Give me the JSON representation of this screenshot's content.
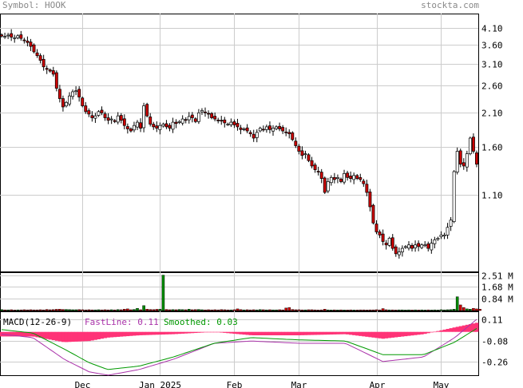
{
  "header": {
    "symbol_label": "Symbol: HOOK",
    "brand": "stockta.com"
  },
  "chart_data": [
    {
      "type": "candlestick",
      "title": "",
      "y_scale": "log",
      "ylim": [
        0.6,
        4.6
      ],
      "y_ticks": [
        "4.10",
        "3.60",
        "3.10",
        "2.60",
        "2.10",
        "1.60",
        "1.10"
      ],
      "x_ticks": [
        "Dec",
        "Jan 2025",
        "Feb",
        "Mar",
        "Apr",
        "May"
      ],
      "grid": true,
      "colors": {
        "up": "#ffffff",
        "down": "#cc0000",
        "wick": "#000000"
      },
      "close": [
        3.85,
        3.84,
        3.88,
        3.82,
        3.8,
        3.86,
        3.78,
        3.72,
        3.66,
        3.55,
        3.4,
        3.3,
        3.18,
        3.02,
        2.96,
        2.92,
        2.85,
        2.55,
        2.35,
        2.2,
        2.28,
        2.4,
        2.48,
        2.5,
        2.38,
        2.22,
        2.12,
        2.08,
        2.02,
        2.05,
        2.12,
        2.1,
        2.02,
        1.98,
        2.0,
        1.96,
        2.05,
        1.98,
        1.9,
        1.85,
        1.82,
        1.9,
        1.95,
        1.86,
        2.22,
        2.05,
        1.92,
        1.88,
        1.86,
        1.9,
        1.92,
        1.88,
        1.86,
        1.95,
        1.93,
        1.96,
        2.0,
        1.98,
        2.04,
        2.02,
        1.96,
        2.1,
        2.14,
        2.1,
        2.08,
        2.02,
        2.0,
        1.98,
        1.97,
        1.94,
        1.92,
        1.95,
        1.91,
        1.88,
        1.84,
        1.85,
        1.82,
        1.78,
        1.72,
        1.8,
        1.86,
        1.84,
        1.88,
        1.84,
        1.86,
        1.88,
        1.85,
        1.82,
        1.8,
        1.78,
        1.7,
        1.62,
        1.55,
        1.5,
        1.52,
        1.44,
        1.38,
        1.34,
        1.32,
        1.25,
        1.12,
        1.22,
        1.26,
        1.24,
        1.26,
        1.22,
        1.3,
        1.26,
        1.25,
        1.28,
        1.25,
        1.24,
        1.2,
        1.12,
        1.0,
        0.88,
        0.82,
        0.8,
        0.76,
        0.74,
        0.78,
        0.72,
        0.69,
        0.7,
        0.72,
        0.73,
        0.74,
        0.72,
        0.74,
        0.73,
        0.74,
        0.74,
        0.72,
        0.75,
        0.77,
        0.78,
        0.8,
        0.8,
        0.85,
        0.9,
        1.32,
        1.55,
        1.4,
        1.38,
        1.52,
        1.72,
        1.55,
        1.4
      ],
      "panels": [
        {
          "type": "bar",
          "name": "volume",
          "y_ticks": [
            "2.51 M",
            "1.68 M",
            "0.84 M"
          ],
          "ylim": [
            0,
            2.6
          ],
          "colors": {
            "up": "#008800",
            "down": "#cc0000"
          },
          "values": [
            0.07,
            0.05,
            0.05,
            0.06,
            0.04,
            0.05,
            0.05,
            0.06,
            0.05,
            0.06,
            0.05,
            0.05,
            0.06,
            0.05,
            0.08,
            0.06,
            0.07,
            0.09,
            0.1,
            0.08,
            0.08,
            0.07,
            0.06,
            0.06,
            0.07,
            0.06,
            0.05,
            0.06,
            0.05,
            0.05,
            0.06,
            0.05,
            0.06,
            0.05,
            0.06,
            0.05,
            0.07,
            0.06,
            0.1,
            0.12,
            0.06,
            0.08,
            0.16,
            0.06,
            0.35,
            0.1,
            0.08,
            0.07,
            0.09,
            0.1,
            2.51,
            0.08,
            0.06,
            0.07,
            0.06,
            0.08,
            0.07,
            0.06,
            0.1,
            0.06,
            0.07,
            0.08,
            0.06,
            0.05,
            0.06,
            0.05,
            0.06,
            0.05,
            0.07,
            0.06,
            0.05,
            0.05,
            0.06,
            0.12,
            0.07,
            0.05,
            0.06,
            0.05,
            0.06,
            0.05,
            0.07,
            0.06,
            0.05,
            0.06,
            0.05,
            0.05,
            0.06,
            0.05,
            0.18,
            0.22,
            0.08,
            0.06,
            0.06,
            0.05,
            0.05,
            0.06,
            0.06,
            0.05,
            0.04,
            0.05,
            0.1,
            0.05,
            0.04,
            0.05,
            0.04,
            0.05,
            0.04,
            0.04,
            0.05,
            0.04,
            0.04,
            0.05,
            0.05,
            0.04,
            0.05,
            0.05,
            0.06,
            0.05,
            0.14,
            0.06,
            0.05,
            0.05,
            0.04,
            0.05,
            0.05,
            0.04,
            0.05,
            0.04,
            0.05,
            0.04,
            0.05,
            0.04,
            0.05,
            0.04,
            0.05,
            0.04,
            0.06,
            0.05,
            0.06,
            0.07,
            0.1,
            0.98,
            0.4,
            0.22,
            0.12,
            0.1,
            0.16,
            0.12,
            0.1
          ]
        },
        {
          "type": "line",
          "name": "macd",
          "label": "MACD(12-26-9)",
          "fastline_label": "FastLine: 0.11",
          "smoothed_label": "Smoothed: 0.03",
          "y_ticks": [
            "0.11",
            "-0.08",
            "-0.26"
          ],
          "ylim": [
            -0.38,
            0.18
          ],
          "colors": {
            "fast": "#aa33aa",
            "smooth": "#009900",
            "hist": "#ff3377"
          },
          "fast_keypoints": [
            [
              0,
              -0.02
            ],
            [
              10,
              -0.05
            ],
            [
              20,
              -0.24
            ],
            [
              28,
              -0.35
            ],
            [
              34,
              -0.38
            ],
            [
              44,
              -0.33
            ],
            [
              55,
              -0.24
            ],
            [
              68,
              -0.1
            ],
            [
              80,
              -0.08
            ],
            [
              95,
              -0.1
            ],
            [
              110,
              -0.1
            ],
            [
              122,
              -0.26
            ],
            [
              135,
              -0.22
            ],
            [
              145,
              -0.05
            ],
            [
              152,
              0.11
            ]
          ],
          "smooth_keypoints": [
            [
              0,
              0.02
            ],
            [
              10,
              -0.01
            ],
            [
              20,
              -0.15
            ],
            [
              28,
              -0.27
            ],
            [
              34,
              -0.33
            ],
            [
              44,
              -0.3
            ],
            [
              55,
              -0.22
            ],
            [
              68,
              -0.1
            ],
            [
              80,
              -0.05
            ],
            [
              95,
              -0.07
            ],
            [
              110,
              -0.08
            ],
            [
              122,
              -0.2
            ],
            [
              135,
              -0.2
            ],
            [
              145,
              -0.09
            ],
            [
              152,
              0.03
            ]
          ]
        }
      ]
    }
  ]
}
